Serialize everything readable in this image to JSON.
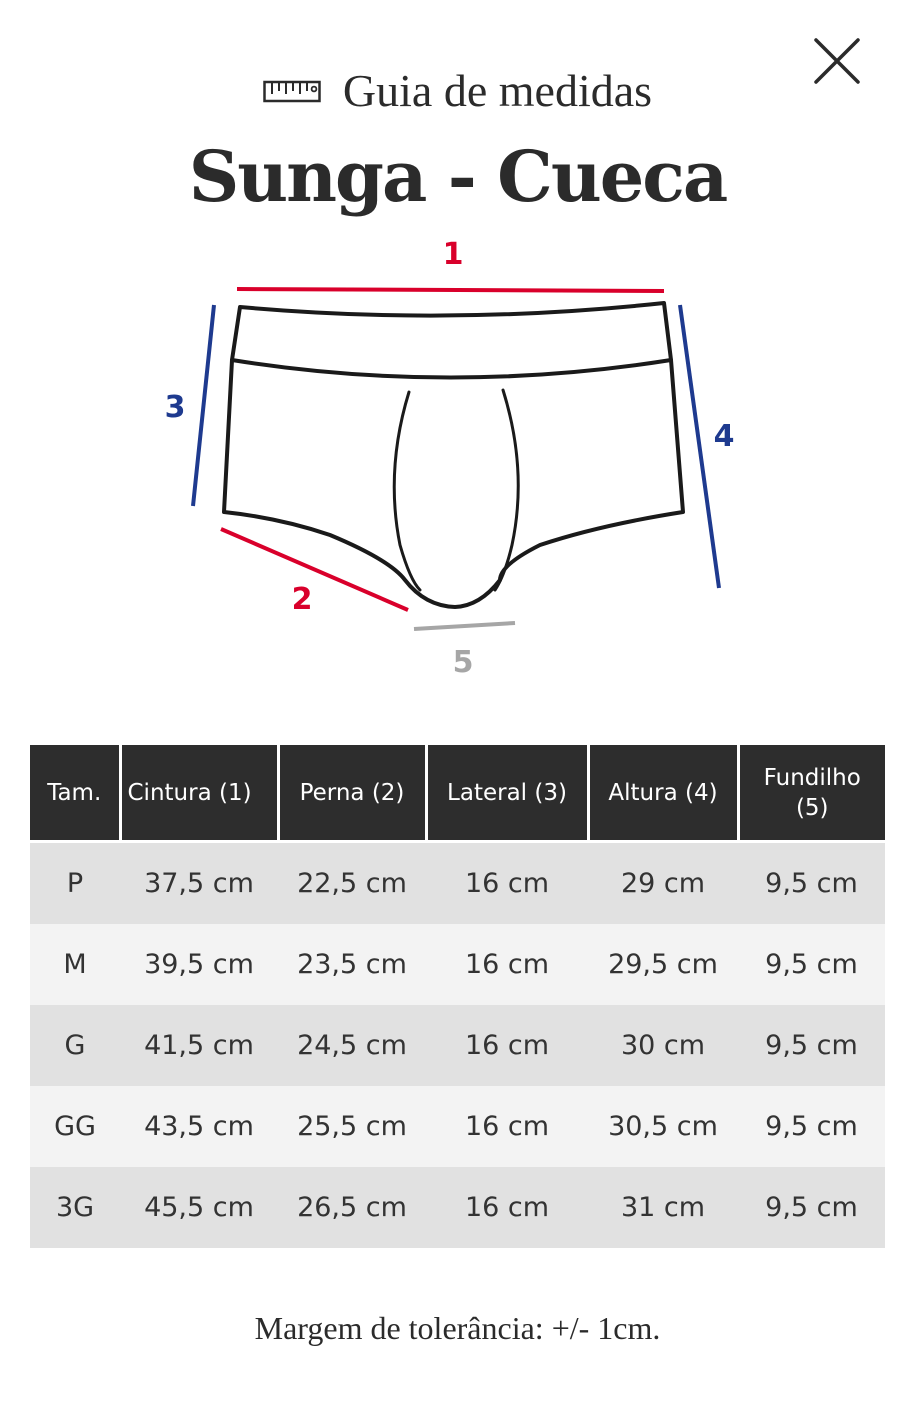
{
  "header": {
    "guide_title": "Guia de medidas",
    "product_title": "Sunga - Cueca",
    "ruler_icon": "ruler-icon",
    "close_icon": "close-icon"
  },
  "diagram": {
    "labels": {
      "waist": "1",
      "leg": "2",
      "side": "3",
      "height": "4",
      "crotch": "5"
    },
    "colors": {
      "red": "#d9002b",
      "blue": "#1e3a8f",
      "gray": "#a6a6a6",
      "outline": "#1a1a1a"
    }
  },
  "table": {
    "headers": [
      "Tam.",
      "Cintura (1)",
      "Perna (2)",
      "Lateral (3)",
      "Altura (4)",
      "Fundilho (5)"
    ],
    "rows": [
      [
        "P",
        "37,5 cm",
        "22,5 cm",
        "16 cm",
        "29 cm",
        "9,5 cm"
      ],
      [
        "M",
        "39,5 cm",
        "23,5 cm",
        "16 cm",
        "29,5 cm",
        "9,5 cm"
      ],
      [
        "G",
        "41,5 cm",
        "24,5 cm",
        "16 cm",
        "30 cm",
        "9,5 cm"
      ],
      [
        "GG",
        "43,5 cm",
        "25,5 cm",
        "16 cm",
        "30,5 cm",
        "9,5 cm"
      ],
      [
        "3G",
        "45,5 cm",
        "26,5 cm",
        "16 cm",
        "31 cm",
        "9,5 cm"
      ]
    ]
  },
  "footer": {
    "tolerance": "Margem de tolerância: +/- 1cm."
  }
}
